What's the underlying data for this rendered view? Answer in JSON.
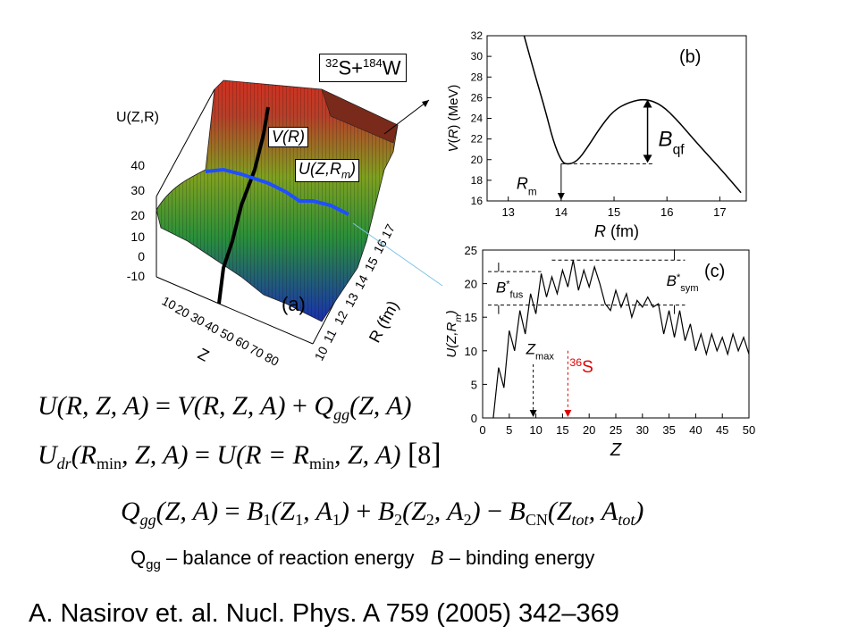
{
  "panel_a": {
    "reaction": {
      "pre1": "32",
      "el1": "S+",
      "pre2": "184",
      "el2": "W"
    },
    "zlabel": "U(Z,R)",
    "z_ticks": [
      "40",
      "30",
      "20",
      "10",
      "0",
      "-10"
    ],
    "z_axis_label": "Z",
    "z_ticks_front": [
      "10",
      "20",
      "30",
      "40",
      "50",
      "60",
      "70",
      "80"
    ],
    "r_axis_label": "R (fm)",
    "r_ticks": [
      "10",
      "11",
      "12",
      "13",
      "14",
      "15",
      "16",
      "17"
    ],
    "curve_v": "V(R)",
    "curve_u": "U(Z,R",
    "curve_u_sub": "m",
    "curve_u_close": ")",
    "label": "(a)",
    "colors": {
      "surface_low": "#1f3fbf",
      "surface_mid": "#2fae2f",
      "surface_high": "#c0392b",
      "ridge": "#1f4fff"
    }
  },
  "chart_data": [
    {
      "type": "line",
      "panel_label": "(b)",
      "xlabel": "R (fm)",
      "ylabel": "V(R) (MeV)",
      "xlim": [
        12.6,
        17.5
      ],
      "ylim": [
        16,
        32
      ],
      "xticks": [
        13,
        14,
        15,
        16,
        17
      ],
      "yticks": [
        16,
        18,
        20,
        22,
        24,
        26,
        28,
        30,
        32
      ],
      "x": [
        13.3,
        13.5,
        13.7,
        13.85,
        14.0,
        14.1,
        14.3,
        14.5,
        14.75,
        15.0,
        15.3,
        15.6,
        15.9,
        16.2,
        16.5,
        16.8,
        17.1,
        17.4
      ],
      "y": [
        32,
        28.3,
        24.8,
        21.8,
        19.9,
        19.5,
        19.8,
        21.2,
        23.2,
        24.8,
        25.6,
        25.9,
        25.3,
        23.8,
        22.0,
        20.3,
        18.6,
        16.8
      ],
      "annotations": {
        "Rm": {
          "text": "R",
          "sub": "m",
          "x": 14.0,
          "y": 19.6
        },
        "Bqf": {
          "text": "B",
          "sub": "qf",
          "x": 15.6,
          "from": 19.6,
          "to": 25.9
        }
      }
    },
    {
      "type": "line",
      "panel_label": "(c)",
      "xlabel": "Z",
      "ylabel": "U(Z,R",
      "ylabel_sub": "m",
      "ylabel_close": ")",
      "xlim": [
        0,
        50
      ],
      "ylim": [
        0,
        25
      ],
      "xticks": [
        0,
        5,
        10,
        15,
        20,
        25,
        30,
        35,
        40,
        45,
        50
      ],
      "yticks": [
        0,
        5,
        10,
        15,
        20,
        25
      ],
      "x": [
        2,
        3,
        4,
        5,
        6,
        7,
        8,
        9,
        10,
        11,
        12,
        13,
        14,
        15,
        16,
        17,
        18,
        19,
        20,
        21,
        22,
        23,
        24,
        25,
        26,
        27,
        28,
        29,
        30,
        31,
        32,
        33,
        34,
        35,
        36,
        37,
        38,
        39,
        40,
        41,
        42,
        43,
        44,
        45,
        46,
        47,
        48,
        49,
        50
      ],
      "y": [
        0,
        7.5,
        4.5,
        13,
        10,
        16,
        12.5,
        18.5,
        15.5,
        21.5,
        18,
        21,
        18.5,
        22,
        19.5,
        23.5,
        19,
        22,
        19.5,
        22.5,
        20,
        17,
        16,
        19,
        16.5,
        18.5,
        15,
        17.5,
        16.5,
        18,
        16.5,
        17,
        12.5,
        16,
        12,
        16,
        11.5,
        14,
        10,
        12.5,
        9.5,
        12.5,
        10,
        12,
        9.5,
        12.5,
        10,
        12,
        9.5
      ],
      "annotations": {
        "Bfus": {
          "text": "B",
          "sup": "*",
          "sub": "fus",
          "from": 16.8,
          "to": 21.8
        },
        "Bsym": {
          "text": "B",
          "sup": "*",
          "sub": "sym",
          "from": 16.8,
          "to": 23.5
        },
        "Zmax": {
          "text": "Z",
          "sub": "max",
          "x": 9.5
        },
        "S36": {
          "pre": "36",
          "text": "S",
          "x": 16
        }
      }
    }
  ],
  "equations": {
    "eq1": {
      "lhs": "U(R, Z, A)",
      "rhs1": "V(R, Z, A)",
      "rhs2": "Q",
      "rhs2_sub": "gg",
      "rhs2_args": "(Z, A)"
    },
    "eq2": {
      "lhs": "U",
      "lhs_sub": "dr",
      "lhs_args": "(R",
      "lhs_min": "min",
      "lhs_rest": ", Z, A)",
      "rhs": "U(R = R",
      "rhs_min": "min",
      "rhs_rest": ", Z, A)",
      "cite": "8"
    },
    "eq3": {
      "lhs": "Q",
      "lhs_sub": "gg",
      "lhs_args": "(Z, A)",
      "t1": "B",
      "t1_sub": "1",
      "t1_args": "(Z",
      "t1_a": "1",
      "t1_b": ", A",
      "t1_c": "1",
      "t2": "B",
      "t2_sub": "2",
      "t2_args": "(Z",
      "t2_a": "2",
      "t2_b": ", A",
      "t2_c": "2",
      "t3": "B",
      "t3_sub": "CN",
      "t3_args": "(Z",
      "t3_a": "tot",
      "t3_b": ", A",
      "t3_c": "tot"
    }
  },
  "caption": {
    "q": "Q",
    "q_sub": "gg",
    "q_text": " – balance of reaction energy",
    "b": "B",
    "b_text": " – binding energy"
  },
  "reference": "A. Nasirov et. al. Nucl. Phys. A 759 (2005) 342–369"
}
